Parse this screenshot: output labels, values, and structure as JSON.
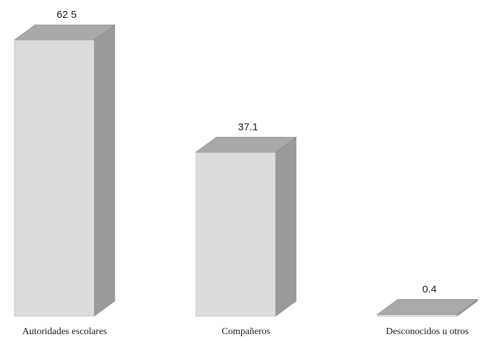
{
  "chart_data": {
    "type": "bar",
    "style": "3d",
    "categories": [
      "Autoridades escolares",
      "Compañeros",
      "Desconocidos u otros"
    ],
    "values": [
      62.5,
      37.1,
      0.4
    ],
    "value_labels": [
      "62 5",
      "37.1",
      "0.4"
    ],
    "title": "",
    "xlabel": "",
    "ylabel": "",
    "ylim": [
      0,
      62.5
    ],
    "grid": false,
    "legend": "none"
  },
  "colors": {
    "front": "#dcdcdc",
    "top": "#a9a9a9",
    "side": "#9a9a9a",
    "text": "#1a1a1a"
  }
}
